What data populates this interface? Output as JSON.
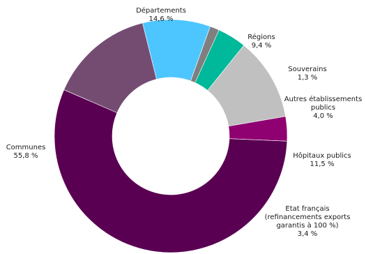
{
  "chart_data": {
    "type": "donut",
    "title": "",
    "legend": "none",
    "series": [
      {
        "slices": [
          {
            "label": "Départements",
            "value": 14.6,
            "value_text": "14,6 %",
            "color": "#744c72"
          },
          {
            "label": "Régions",
            "value": 9.4,
            "value_text": "9,4 %",
            "color": "#4dc6ff"
          },
          {
            "label": "Souverains",
            "value": 1.3,
            "value_text": "1,3 %",
            "color": "#7f7f7f"
          },
          {
            "label": "Autres établissements publics",
            "value": 4.0,
            "value_text": "4,0 %",
            "color": "#00b89a"
          },
          {
            "label": "Hôpitaux publics",
            "value": 11.5,
            "value_text": "11,5 %",
            "color": "#c0c0c0"
          },
          {
            "label": "Etat français (refinancements exports garantis à 100 %)",
            "value": 3.4,
            "value_text": "3,4 %",
            "color": "#8f0070"
          },
          {
            "label": "Communes",
            "value": 55.8,
            "value_text": "55,8 %",
            "color": "#5a0052"
          }
        ]
      }
    ],
    "labels": {
      "departements": {
        "lines": [
          "Départements",
          "14,6 %"
        ]
      },
      "regions": {
        "lines": [
          "Régions",
          "9,4 %"
        ]
      },
      "souverains": {
        "lines": [
          "Souverains",
          "1,3 %"
        ]
      },
      "autres": {
        "lines": [
          "Autres établissements",
          "publics",
          "4,0 %"
        ]
      },
      "hopitaux": {
        "lines": [
          "Hôpitaux publics",
          "11,5 %"
        ]
      },
      "etat": {
        "lines": [
          "Etat français",
          "(refinancements exports",
          "garantis à 100 %)",
          "3,4 %"
        ]
      },
      "communes": {
        "lines": [
          "Communes",
          "55,8 %"
        ]
      }
    }
  }
}
